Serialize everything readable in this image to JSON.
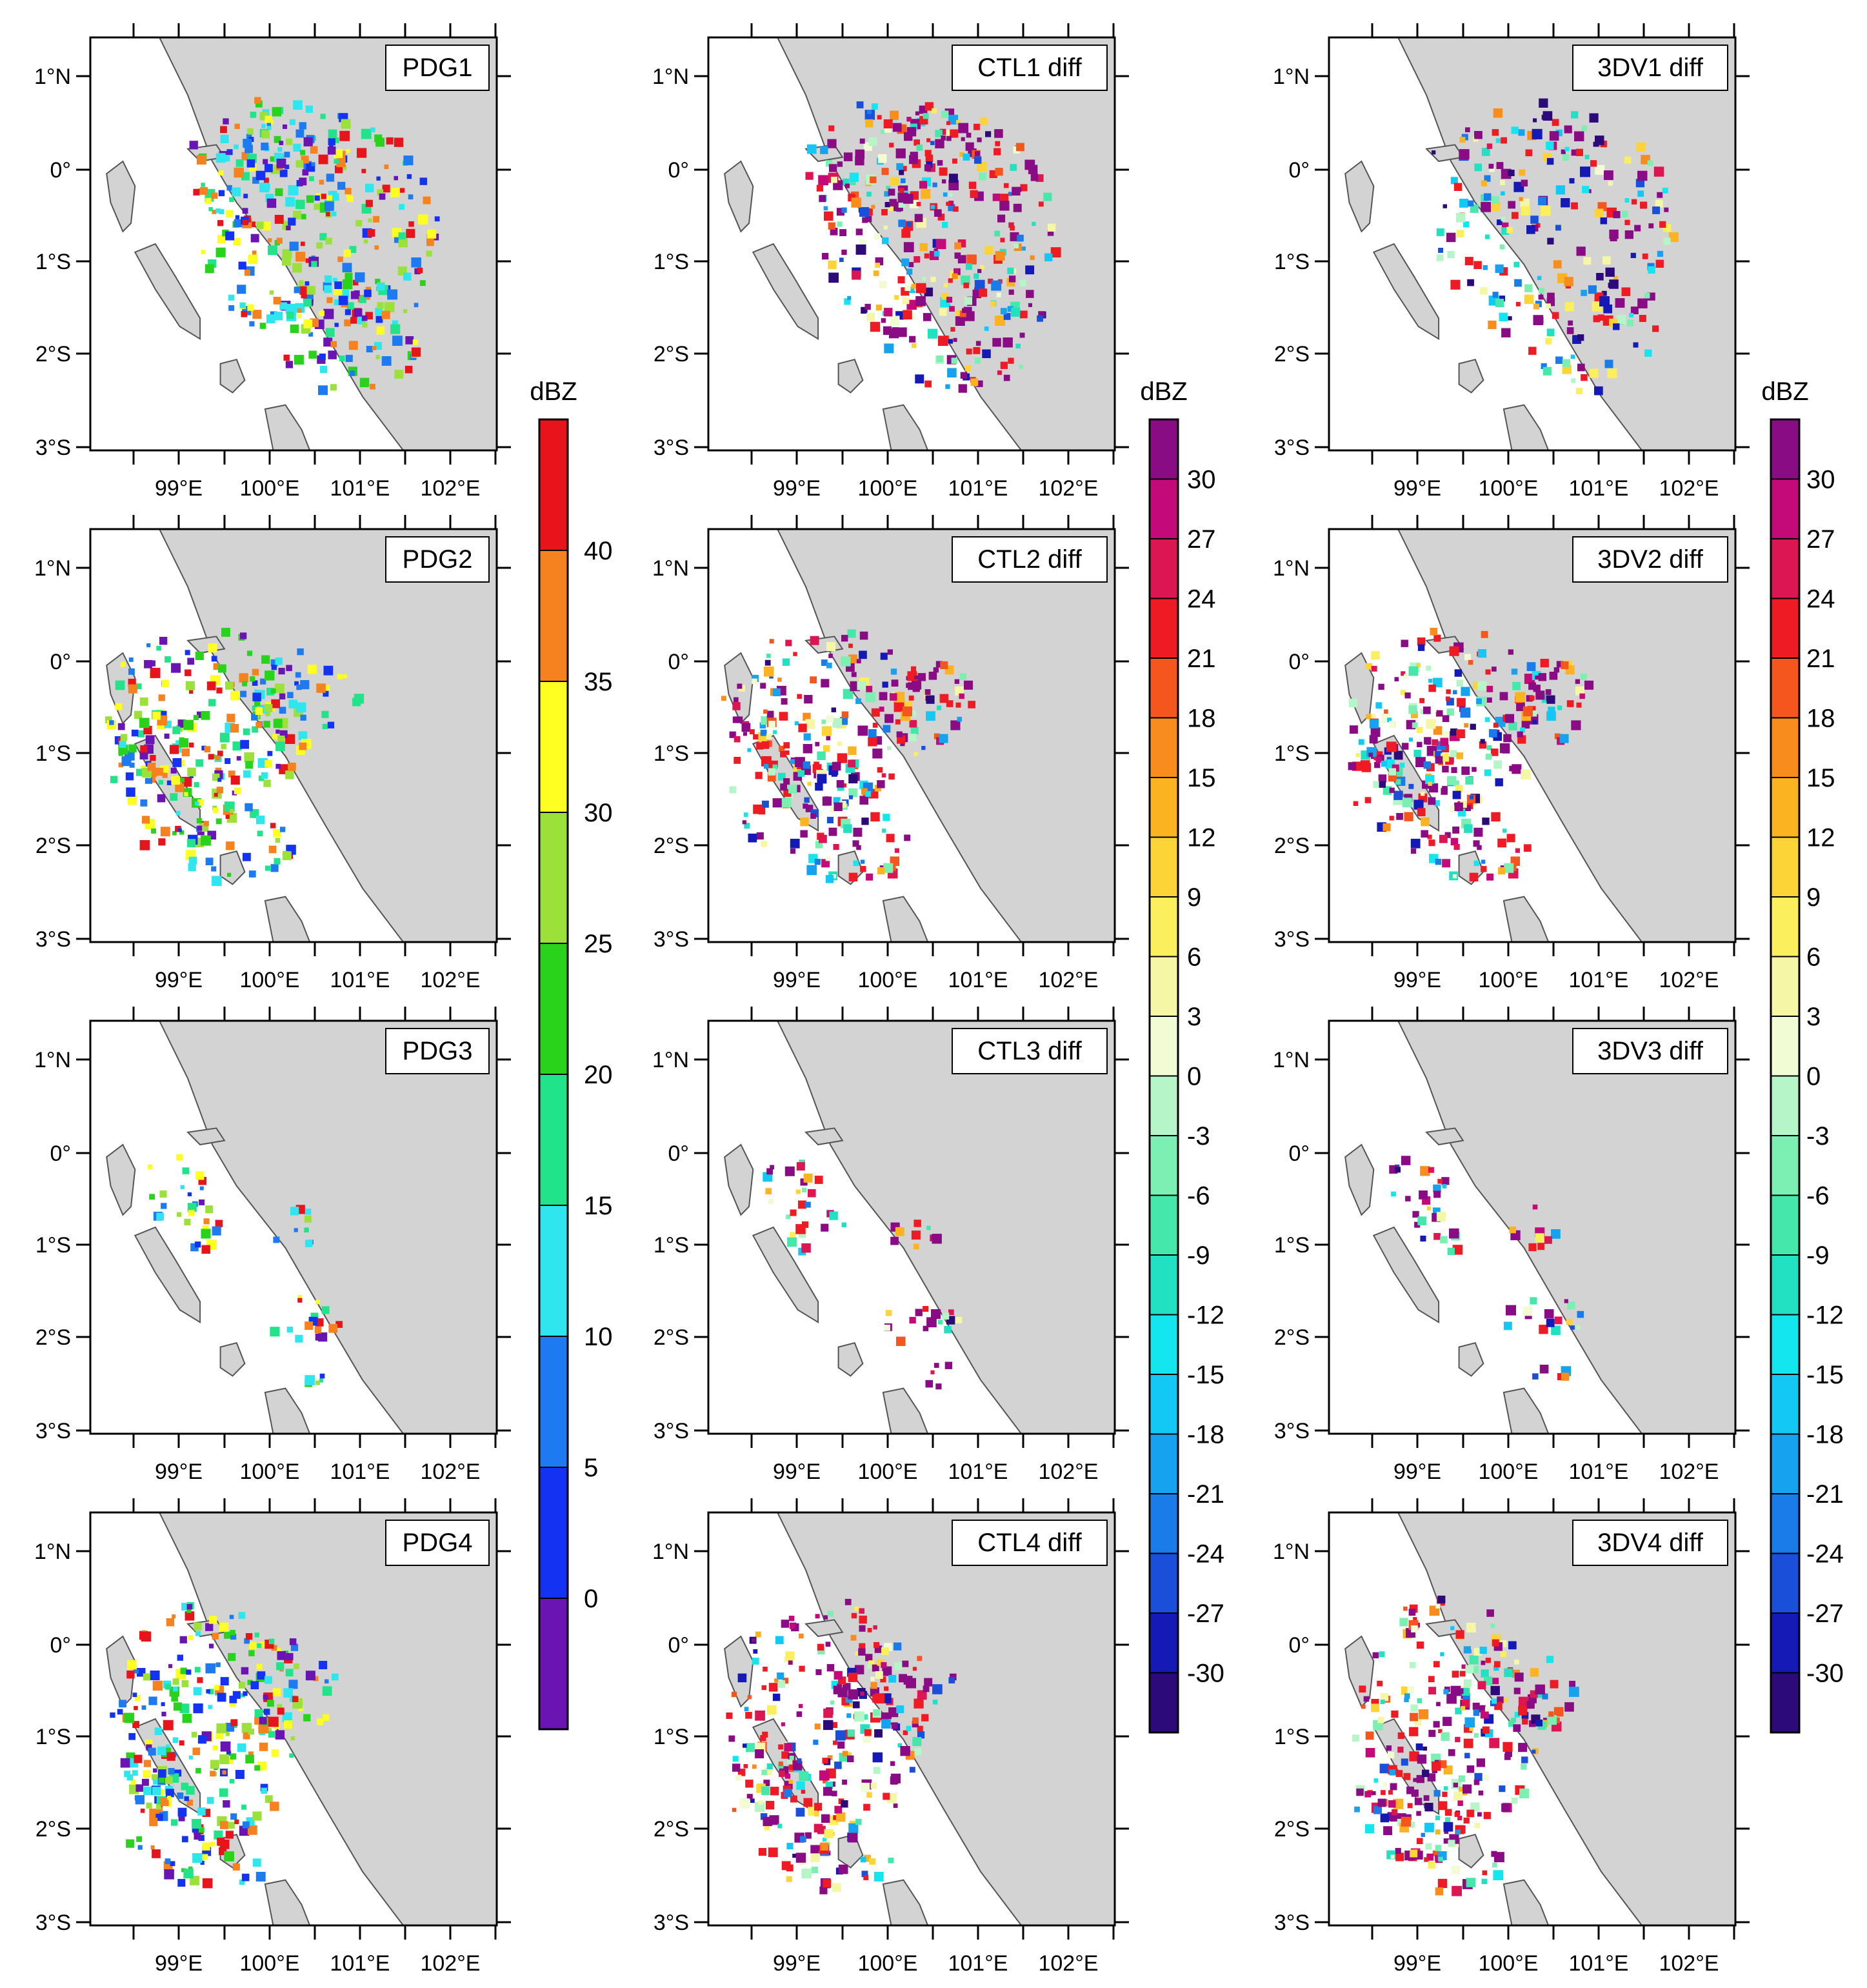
{
  "unit_label": "dBZ",
  "lat_labels": [
    "1°N",
    "0°",
    "1°S",
    "2°S",
    "3°S"
  ],
  "lon_labels": [
    "99°E",
    "100°E",
    "101°E",
    "102°E"
  ],
  "columns": [
    {
      "id": "pdg",
      "panels": [
        "PDG1",
        "PDG2",
        "PDG3",
        "PDG4"
      ],
      "colorbar": "obs"
    },
    {
      "id": "ctl",
      "panels": [
        "CTL1 diff",
        "CTL2 diff",
        "CTL3 diff",
        "CTL4 diff"
      ],
      "colorbar": "diff"
    },
    {
      "id": "3dv",
      "panels": [
        "3DV1 diff",
        "3DV2 diff",
        "3DV3 diff",
        "3DV4 diff"
      ],
      "colorbar": "diff"
    }
  ],
  "colorbar_obs": {
    "labels": [
      "40",
      "35",
      "30",
      "25",
      "20",
      "15",
      "10",
      "5",
      "0"
    ],
    "colors": [
      "#e8141c",
      "#f5821f",
      "#ffff22",
      "#9be13a",
      "#29d31b",
      "#20e38a",
      "#2fe6ee",
      "#1d7af0",
      "#1432f2",
      "#6a14b4"
    ]
  },
  "colorbar_diff": {
    "labels": [
      "30",
      "27",
      "24",
      "21",
      "18",
      "15",
      "12",
      "9",
      "6",
      "3",
      "0",
      "-3",
      "-6",
      "-9",
      "-12",
      "-15",
      "-18",
      "-21",
      "-24",
      "-27",
      "-30"
    ],
    "colors": [
      "#8a0c84",
      "#c40a78",
      "#dc1652",
      "#ee1b24",
      "#f5561e",
      "#f88c1d",
      "#fbb321",
      "#fdd437",
      "#fbef5e",
      "#f5f7a6",
      "#f1fbd4",
      "#b6f5c8",
      "#7cf0b2",
      "#46e7ab",
      "#22e0c2",
      "#14e6f0",
      "#13c8f5",
      "#17a2ef",
      "#1a7ce8",
      "#1a4fd9",
      "#1519b5",
      "#2c0a7a"
    ]
  },
  "colors": {
    "land": "#d3d3d3",
    "coast": "#555555"
  }
}
